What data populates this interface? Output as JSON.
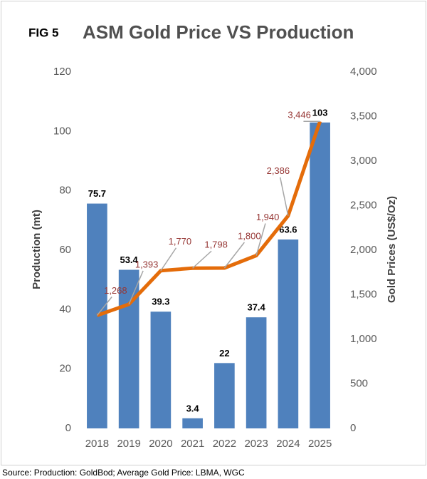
{
  "chart_data": {
    "type": "bar-line",
    "figure_label": "FIG 5",
    "title": "ASM Gold Price VS Production",
    "y_label": "Production (mt)",
    "y2_label": "Gold Prices (US$/Oz)",
    "source": "Source: Production: GoldBod; Average Gold Price: LBMA, WGC",
    "categories": [
      "2018",
      "2019",
      "2020",
      "2021",
      "2022",
      "2023",
      "2024",
      "2025"
    ],
    "series": [
      {
        "name": "Production",
        "type": "bar",
        "color": "#4f81bd",
        "values": [
          75.7,
          53.4,
          39.3,
          3.4,
          22,
          37.4,
          63.6,
          103
        ]
      },
      {
        "name": "Gold Price",
        "type": "line",
        "axis": "y2",
        "color": "#e46c0a",
        "values": [
          1268,
          1393,
          1770,
          1798,
          1800,
          1940,
          2386,
          3446
        ],
        "value_labels": [
          "1,268",
          "1,393",
          "1,770",
          "1,798",
          "1,800",
          "1,940",
          "2,386",
          "3,446"
        ]
      }
    ],
    "ylim": [
      0,
      120
    ],
    "yticks": [
      0,
      20,
      40,
      60,
      80,
      100,
      120
    ],
    "y2lim": [
      0,
      4000
    ],
    "y2ticks": [
      0,
      500,
      {
        "value": 1000,
        "label": "1,000"
      },
      {
        "value": 1500,
        "label": "1,500"
      },
      {
        "value": 2000,
        "label": "2,000"
      },
      {
        "value": 2500,
        "label": "2,500"
      },
      {
        "value": 3000,
        "label": "3,000"
      },
      {
        "value": 3500,
        "label": "3,500"
      },
      {
        "value": 4000,
        "label": "4,000"
      }
    ]
  }
}
